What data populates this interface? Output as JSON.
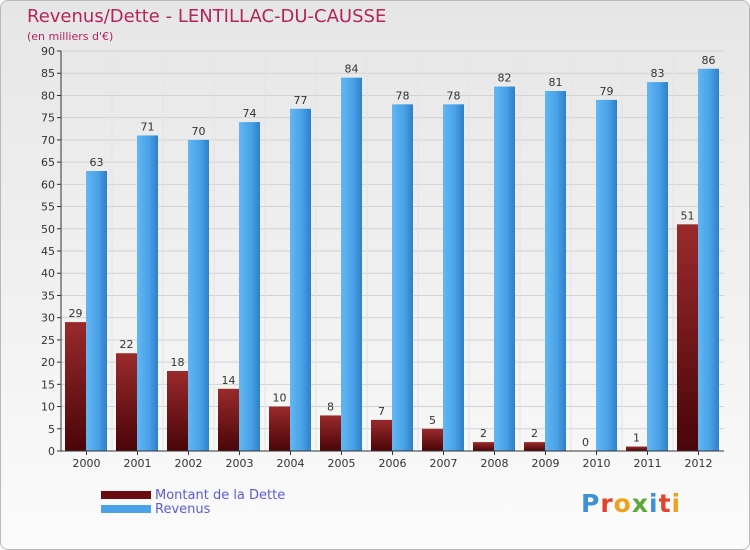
{
  "title": "Revenus/Dette - LENTILLAC-DU-CAUSSE",
  "subtitle": "(en milliers d'€)",
  "chart_data": {
    "type": "bar",
    "categories": [
      "2000",
      "2001",
      "2002",
      "2003",
      "2004",
      "2005",
      "2006",
      "2007",
      "2008",
      "2009",
      "2010",
      "2011",
      "2012"
    ],
    "series": [
      {
        "name": "Montant de la Dette",
        "values": [
          29,
          22,
          18,
          14,
          10,
          8,
          7,
          5,
          2,
          2,
          0,
          1,
          51
        ],
        "color": "#6b0d10"
      },
      {
        "name": "Revenus",
        "values": [
          63,
          71,
          70,
          74,
          77,
          84,
          78,
          78,
          82,
          81,
          79,
          83,
          86
        ],
        "color": "#4aa3e8"
      }
    ],
    "ylim": [
      0,
      90
    ],
    "yticks": [
      0,
      5,
      10,
      15,
      20,
      25,
      30,
      35,
      40,
      45,
      50,
      55,
      60,
      65,
      70,
      75,
      80,
      85,
      90
    ],
    "grid": true,
    "legend": "bottom-left"
  },
  "logo": {
    "letters": [
      {
        "ch": "P",
        "color": "#3d8fd6"
      },
      {
        "ch": "r",
        "color": "#e0452c"
      },
      {
        "ch": "o",
        "color": "#f2a11d"
      },
      {
        "ch": "x",
        "color": "#5aa83a"
      },
      {
        "ch": "i",
        "color": "#3d8fd6"
      },
      {
        "ch": "t",
        "color": "#e0452c"
      },
      {
        "ch": "i",
        "color": "#f2a11d"
      }
    ]
  }
}
